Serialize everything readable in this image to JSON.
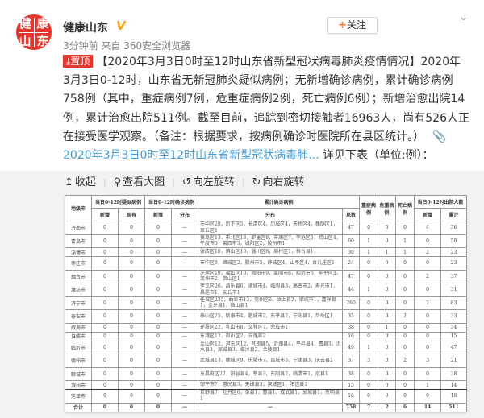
{
  "post": {
    "avatar_text": [
      "健",
      "康",
      "山",
      "东"
    ],
    "author": "健康山东",
    "verified_icon": "verified-v-icon",
    "follow_label": "关注",
    "time": "3分钟前 来自 360安全浏览器",
    "pin_label": "置顶",
    "lines": [
      "【2020年3月3日0时至12时山东省新型冠状病毒肺炎疫情情况】2020年",
      "3月3日0-12时，山东省无新冠肺炎疑似病例；无新增确诊病例，累计确诊病例",
      "758例（其中，重症病例7例，危重症病例2例，死亡病例6例）；新增治愈出院14",
      "例，累计治愈出院511例。截至目前，追踪到密切接触者16963人，尚有526人正",
      "在接受医学观察。（备注：根据要求，按病例确诊时医院所在县区统计。）"
    ],
    "link_text": "2020年3月3日0时至12时山东省新型冠状病毒肺...",
    "link_suffix": " 详见下表（单位:例）：",
    "colors": {
      "link": "#3e9ddb",
      "pin": "#e8352c",
      "follow_plus": "#ff8140"
    }
  },
  "toolbar": {
    "collapse": "收起",
    "view_large": "查看大图",
    "rotate_left": "向左旋转",
    "rotate_right": "向右旋转"
  },
  "table": {
    "headers": {
      "city": "地级市",
      "suspected": "当日0-12时疑似病例",
      "confirmed_today": "当日0-12时确诊病例",
      "cumulative": "累计确诊病例",
      "severe": "重症病例",
      "critical": "危重病例",
      "death": "死亡病例",
      "discharged": "当日0-12时出院人数",
      "new": "新增",
      "existing": "现有",
      "distribution": "分布",
      "total": "总数",
      "cumulative_short": "累计"
    },
    "rows": [
      {
        "city": "济南市",
        "s_new": "0",
        "s_cur": "0",
        "c_new": "0",
        "c_dist": "—",
        "dist": "市中区28，历下区5，长清区4，历城区4，天桥区4，槐荫区1，章丘区1",
        "total": "47",
        "severe": "0",
        "critical": "0",
        "death": "0",
        "d_new": "4",
        "d_cum": "36",
        "h": 2
      },
      {
        "city": "青岛市",
        "s_new": "0",
        "s_cur": "0",
        "c_new": "0",
        "c_dist": "—",
        "dist": "黄岛区13，市北区13，即墨区8，市南区7，李沧区6，崂山区4，平度市3，莱西市3，城阳区2，胶州市1",
        "total": "60",
        "severe": "1",
        "critical": "0",
        "death": "1",
        "d_new": "0",
        "d_cum": "58",
        "h": 2
      },
      {
        "city": "淄博市",
        "s_new": "0",
        "s_cur": "0",
        "c_new": "0",
        "c_dist": "—",
        "dist": "张店区10，博山区10，淄川区8，周村区1，桓台县1",
        "total": "30",
        "severe": "1",
        "critical": "1",
        "death": "1",
        "d_new": "2",
        "d_cum": "23",
        "h": 1
      },
      {
        "city": "枣庄市",
        "s_new": "0",
        "s_cur": "0",
        "c_new": "0",
        "c_dist": "—",
        "dist": "市中区8，峄城区2，滕州市5，薛城区4，山亭区4，台儿庄区1",
        "total": "24",
        "severe": "0",
        "critical": "0",
        "death": "0",
        "d_new": "0",
        "d_cum": "23",
        "h": 2
      },
      {
        "city": "烟台市",
        "s_new": "0",
        "s_cur": "0",
        "c_new": "0",
        "c_dist": "—",
        "dist": "芝罘区10，福山区10，海阳市9，莱阳市6，招远市6，牟平区3，莱州市2，莱山区1",
        "total": "47",
        "severe": "0",
        "critical": "0",
        "death": "0",
        "d_new": "2",
        "d_cum": "37",
        "h": 2
      },
      {
        "city": "潍坊市",
        "s_new": "0",
        "s_cur": "0",
        "c_new": "0",
        "c_dist": "—",
        "dist": "奎文区26，昌乐县6，诸城市4，临朐县3，高密市2，寿光市1，昌邑市1，安丘市1",
        "total": "44",
        "severe": "1",
        "critical": "0",
        "death": "0",
        "d_new": "0",
        "d_cum": "31",
        "h": 2
      },
      {
        "city": "济宁市",
        "s_new": "0",
        "s_cur": "0",
        "c_new": "0",
        "c_dist": "—",
        "dist": "任城区235，曲阜市13，兖州区6，汶上县2，邹城市1，嘉祥县1，金乡县1，微山县1",
        "total": "260",
        "severe": "0",
        "critical": "0",
        "death": "0",
        "d_new": "2",
        "d_cum": "83",
        "h": 2
      },
      {
        "city": "泰安市",
        "s_new": "0",
        "s_cur": "0",
        "c_new": "0",
        "c_dist": "—",
        "dist": "泰山区25，新泰市4，肥城市2，东平县2，宁阳县1，岱岳区1",
        "total": "35",
        "severe": "0",
        "critical": "0",
        "death": "2",
        "d_new": "0",
        "d_cum": "33",
        "h": 2
      },
      {
        "city": "威海市",
        "s_new": "0",
        "s_cur": "0",
        "c_new": "0",
        "c_dist": "—",
        "dist": "环翠区22，乳山市8，文登区7，荣成市1",
        "total": "38",
        "severe": "0",
        "critical": "1",
        "death": "0",
        "d_new": "0",
        "d_cum": "34",
        "h": 1
      },
      {
        "city": "日照市",
        "s_new": "0",
        "s_cur": "0",
        "c_new": "0",
        "c_dist": "—",
        "dist": "东港区12，岚山区2，五莲县2",
        "total": "16",
        "severe": "0",
        "critical": "0",
        "death": "0",
        "d_new": "0",
        "d_cum": "15",
        "h": 1
      },
      {
        "city": "临沂市",
        "s_new": "0",
        "s_cur": "0",
        "c_new": "0",
        "c_dist": "—",
        "dist": "兰山区12，河东区12，莒南县5，沂南县4，平邑县4，费县3，沂水县3，郯城县3，临沭县2，兰陵县1",
        "total": "49",
        "severe": "1",
        "critical": "0",
        "death": "0",
        "d_new": "0",
        "d_cum": "47",
        "h": 2
      },
      {
        "city": "德州市",
        "s_new": "0",
        "s_cur": "0",
        "c_new": "0",
        "c_dist": "—",
        "dist": "武城县13，德城区9，乐陵市7，禹城市3，宁津县3，庆云县2",
        "total": "37",
        "severe": "3",
        "critical": "0",
        "death": "2",
        "d_new": "3",
        "d_cum": "21",
        "h": 2
      },
      {
        "city": "聊城市",
        "s_new": "0",
        "s_cur": "0",
        "c_new": "0",
        "c_dist": "—",
        "dist": "东昌府区27，阳谷县4，莘县3，东阿县2，临清市1，冠县1",
        "total": "38",
        "severe": "0",
        "critical": "0",
        "death": "0",
        "d_new": "0",
        "d_cum": "38",
        "h": 2
      },
      {
        "city": "滨州市",
        "s_new": "0",
        "s_cur": "0",
        "c_new": "0",
        "c_dist": "—",
        "dist": "邹平市7，惠民县3，无棣县3，滨城区1，阳信县1",
        "total": "15",
        "severe": "0",
        "critical": "0",
        "death": "0",
        "d_new": "1",
        "d_cum": "14",
        "h": 1
      },
      {
        "city": "菏泽市",
        "s_new": "0",
        "s_cur": "0",
        "c_new": "0",
        "c_dist": "—",
        "dist": "巨野县7，牡丹区6，单县1，曹县1，成武县1，郓城县1，东明县1",
        "total": "18",
        "severe": "0",
        "critical": "0",
        "death": "0",
        "d_new": "0",
        "d_cum": "18",
        "h": 2
      },
      {
        "city": "合计",
        "s_new": "0",
        "s_cur": "0",
        "c_new": "0",
        "c_dist": "—",
        "dist": "—",
        "total": "758",
        "severe": "7",
        "critical": "2",
        "death": "6",
        "d_new": "14",
        "d_cum": "511",
        "h": 1
      }
    ]
  }
}
